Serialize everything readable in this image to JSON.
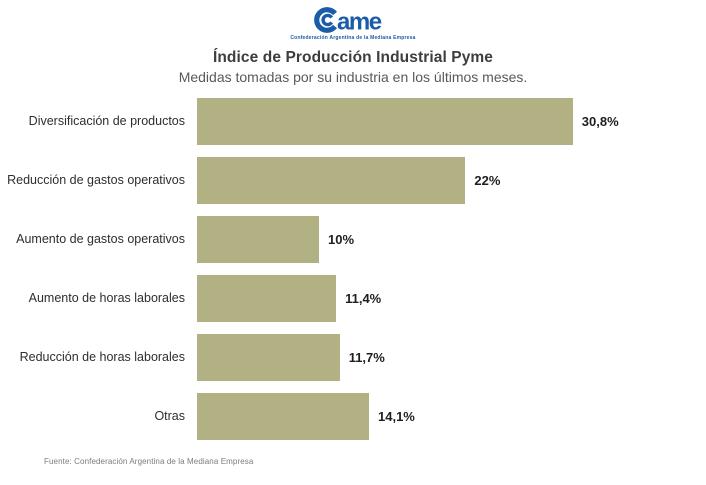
{
  "header": {
    "logo": {
      "brand_text": "ame",
      "subtext": "Confederación Argentina de la Mediana Empresa",
      "color": "#1b5ca8"
    },
    "title": "Índice de Producción Industrial Pyme",
    "subtitle": "Medidas tomadas por su industria en los últimos meses."
  },
  "chart_data": {
    "type": "bar",
    "orientation": "horizontal",
    "title": "Índice de Producción Industrial Pyme",
    "subtitle": "Medidas tomadas por su industria en los últimos meses.",
    "categories": [
      "Diversificación de productos",
      "Reducción de gastos operativos",
      "Aumento de gastos operativos",
      "Aumento de horas laborales",
      "Reducción de horas laborales",
      "Otras"
    ],
    "values": [
      30.8,
      22,
      10,
      11.4,
      11.7,
      14.1
    ],
    "display_values": [
      "30,8%",
      "22%",
      "10%",
      "11,4%",
      "11,7%",
      "14,1%"
    ],
    "unit": "%",
    "bar_color": "#b2b184",
    "xlim": [
      0,
      32
    ],
    "grid": false,
    "legend": false,
    "value_labels_position": "outside-end"
  },
  "footer": {
    "source": "Fuente: Confederación Argentina de la Mediana Empresa"
  }
}
